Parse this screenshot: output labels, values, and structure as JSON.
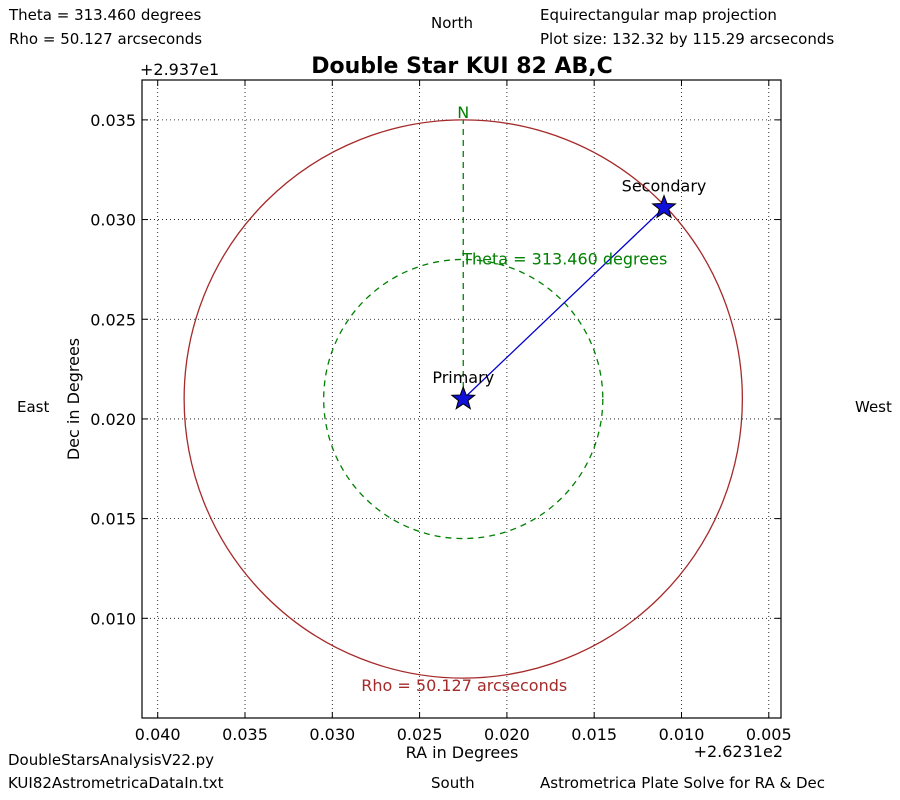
{
  "header": {
    "theta_text": "Theta = 313.460 degrees",
    "rho_text": "Rho =  50.127 arcseconds",
    "north": "North",
    "projection": "Equirectangular map projection",
    "plot_size": "Plot size: 132.32 by 115.29 arcseconds"
  },
  "footer": {
    "script_name": "DoubleStarsAnalysisV22.py",
    "data_file": "KUI82AstrometricaDataIn.txt",
    "south": "South",
    "source": "Astrometrica Plate Solve for RA & Dec"
  },
  "sides": {
    "east": "East",
    "west": "West"
  },
  "chart_data": {
    "type": "scatter",
    "title": "Double Star KUI 82 AB,C",
    "xlabel": "RA in Degrees",
    "ylabel": "Dec in Degrees",
    "x_offset_text": "+2.6231e2",
    "y_offset_text": "+2.937e1",
    "xlim": [
      0.0409,
      0.0043
    ],
    "ylim": [
      0.005,
      0.037
    ],
    "x_inverted": true,
    "grid": true,
    "x_ticks": [
      0.04,
      0.035,
      0.03,
      0.025,
      0.02,
      0.015,
      0.01,
      0.005
    ],
    "x_tick_labels": [
      "0.040",
      "0.035",
      "0.030",
      "0.025",
      "0.020",
      "0.015",
      "0.010",
      "0.005"
    ],
    "y_ticks": [
      0.01,
      0.015,
      0.02,
      0.025,
      0.03,
      0.035
    ],
    "y_tick_labels": [
      "0.010",
      "0.015",
      "0.020",
      "0.025",
      "0.030",
      "0.035"
    ],
    "stars": [
      {
        "name": "Primary",
        "x": 0.0225,
        "y": 0.021
      },
      {
        "name": "Secondary",
        "x": 0.011,
        "y": 0.0306
      }
    ],
    "rho_circle": {
      "center_x": 0.0225,
      "center_y": 0.021,
      "radius_y": 0.014,
      "color": "#a52a2a"
    },
    "theta_circle": {
      "center_x": 0.0225,
      "center_y": 0.021,
      "radius_y": 0.007,
      "color": "#008000"
    },
    "north_line": {
      "x": 0.0225,
      "y_from": 0.021,
      "y_to": 0.035,
      "label": "N",
      "color": "#008000"
    },
    "separation_line_color": "#0000cd",
    "star_color": "#1010d8",
    "theta_label": "Theta = 313.460 degrees",
    "rho_label": "Rho = 50.127 arcseconds"
  }
}
